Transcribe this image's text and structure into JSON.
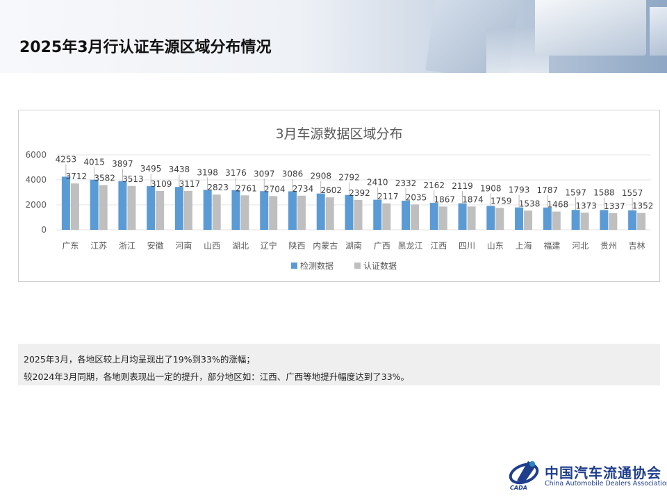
{
  "page": {
    "title": "2025年3月行认证车源区域分布情况"
  },
  "notes": [
    "2025年3月，各地区较上月均呈现出了19%到33%的涨幅；",
    "较2024年3月同期，各地则表现出一定的提升，部分地区如：江西、广西等地提升幅度达到了33%。"
  ],
  "logo": {
    "cn": "中国汽车流通协会",
    "en": "China Automobile Dealers Association",
    "abbr": "CADA"
  },
  "colors": {
    "series1": "#5b9bd5",
    "series2": "#bfbfbf"
  },
  "chart_data": {
    "type": "bar",
    "title": "3月车源数据区域分布",
    "categories": [
      "广东",
      "江苏",
      "浙江",
      "安徽",
      "河南",
      "山西",
      "湖北",
      "辽宁",
      "陕西",
      "内蒙古",
      "湖南",
      "广西",
      "黑龙江",
      "江西",
      "四川",
      "山东",
      "上海",
      "福建",
      "河北",
      "贵州",
      "吉林"
    ],
    "series": [
      {
        "name": "检测数据",
        "values": [
          4253,
          4015,
          3897,
          3495,
          3438,
          3198,
          3176,
          3097,
          3086,
          2908,
          2792,
          2410,
          2332,
          2162,
          2119,
          1908,
          1793,
          1787,
          1597,
          1588,
          1557
        ]
      },
      {
        "name": "认证数据",
        "values": [
          3712,
          3582,
          3513,
          3109,
          3117,
          2823,
          2761,
          2704,
          2734,
          2602,
          2392,
          2117,
          2035,
          1867,
          1874,
          1759,
          1538,
          1468,
          1373,
          1337,
          1352
        ]
      }
    ],
    "yticks": [
      0,
      2000,
      4000,
      6000
    ],
    "ylim": [
      0,
      6000
    ],
    "legend": "bottom",
    "grid": true
  }
}
